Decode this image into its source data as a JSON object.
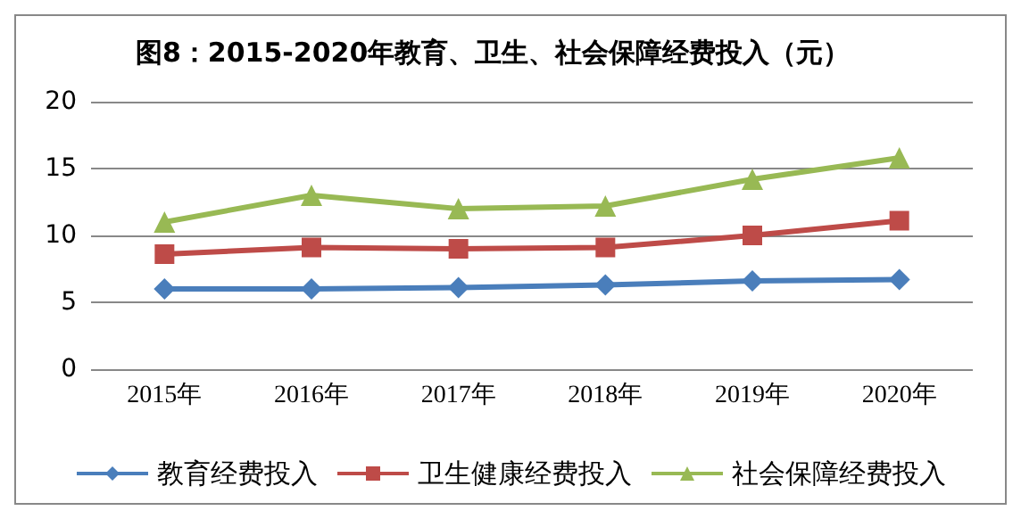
{
  "chart_data": {
    "type": "line",
    "title": "图8：2015-2020年教育、卫生、社会保障经费投入（元）",
    "categories": [
      "2015年",
      "2016年",
      "2017年",
      "2018年",
      "2019年",
      "2020年"
    ],
    "series": [
      {
        "name": "教育经费投入",
        "color": "#4a7ebb",
        "marker": "diamond",
        "values": [
          6.0,
          6.0,
          6.1,
          6.3,
          6.6,
          6.7
        ]
      },
      {
        "name": "卫生健康经费投入",
        "color": "#be4b48",
        "marker": "square",
        "values": [
          8.6,
          9.1,
          9.0,
          9.1,
          10.0,
          11.1
        ]
      },
      {
        "name": "社会保障经费投入",
        "color": "#98b954",
        "marker": "triangle",
        "values": [
          11.0,
          13.0,
          12.0,
          12.2,
          14.2,
          15.8
        ]
      }
    ],
    "ylim": [
      0,
      20
    ],
    "yticks": [
      0,
      5,
      10,
      15,
      20
    ],
    "grid": "y",
    "legend": "bottom"
  }
}
